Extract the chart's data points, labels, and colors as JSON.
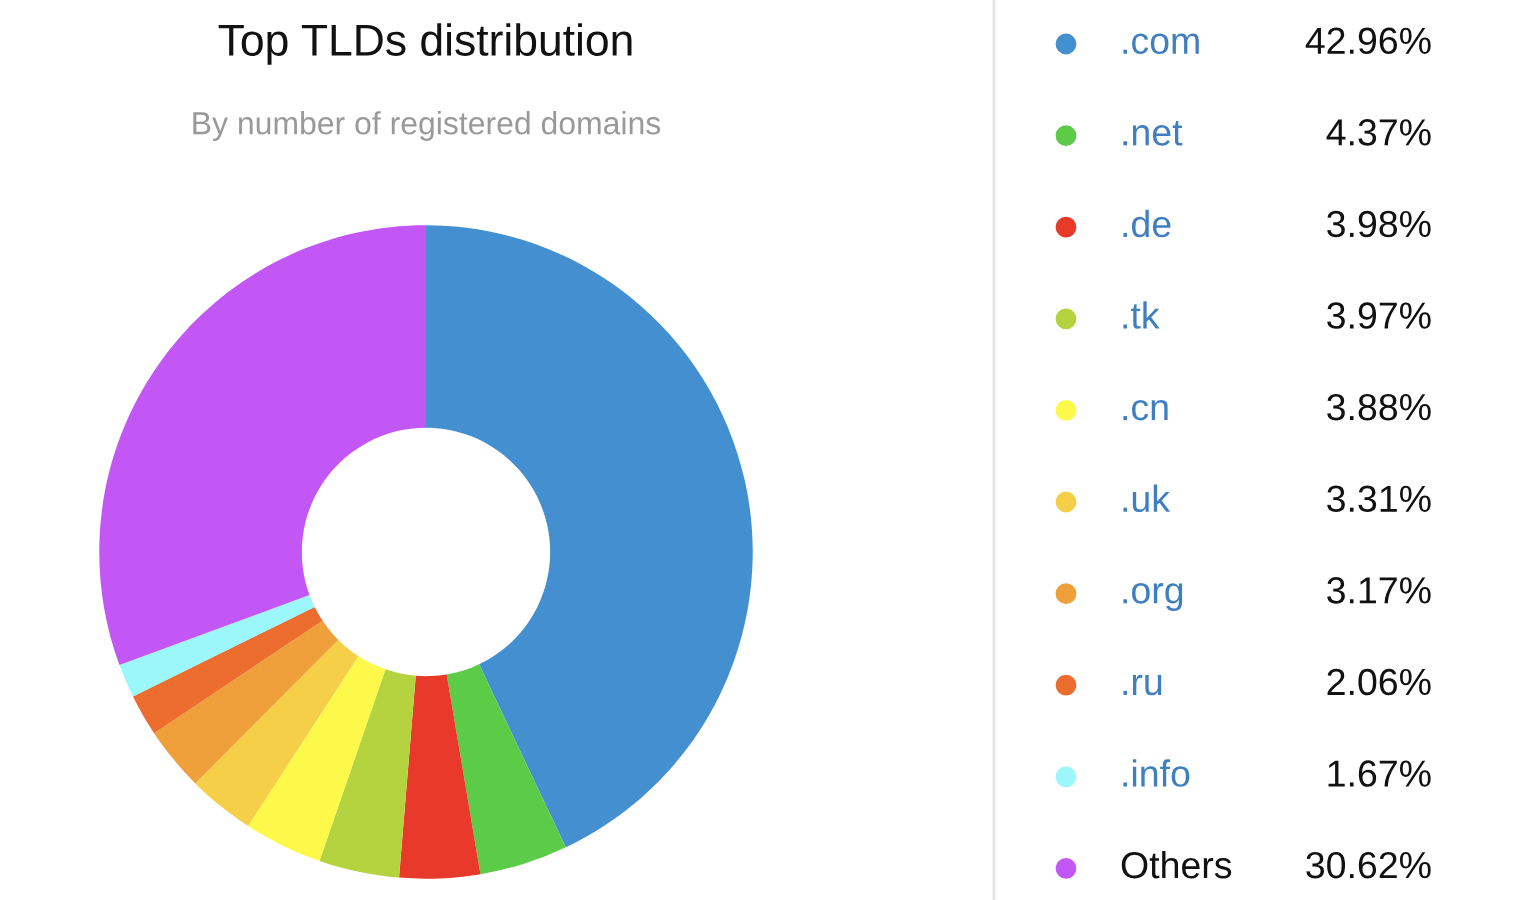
{
  "chart_data": {
    "type": "donut",
    "title": "Top TLDs distribution",
    "subtitle": "By number of registered domains",
    "categories": [
      ".com",
      ".net",
      ".de",
      ".tk",
      ".cn",
      ".uk",
      ".org",
      ".ru",
      ".info",
      "Others"
    ],
    "values": [
      42.96,
      4.37,
      3.98,
      3.97,
      3.88,
      3.31,
      3.17,
      2.06,
      1.67,
      30.62
    ],
    "value_labels": [
      "42.96%",
      "4.37%",
      "3.98%",
      "3.97%",
      "3.88%",
      "3.31%",
      "3.17%",
      "2.06%",
      "1.67%",
      "30.62%"
    ],
    "colors": [
      "#438fd0",
      "#5ccc48",
      "#e8392a",
      "#b5d33f",
      "#fdf94a",
      "#f5cf47",
      "#f0a03a",
      "#ec6d2e",
      "#9cf7fb",
      "#c257f5"
    ],
    "legend": "right"
  }
}
